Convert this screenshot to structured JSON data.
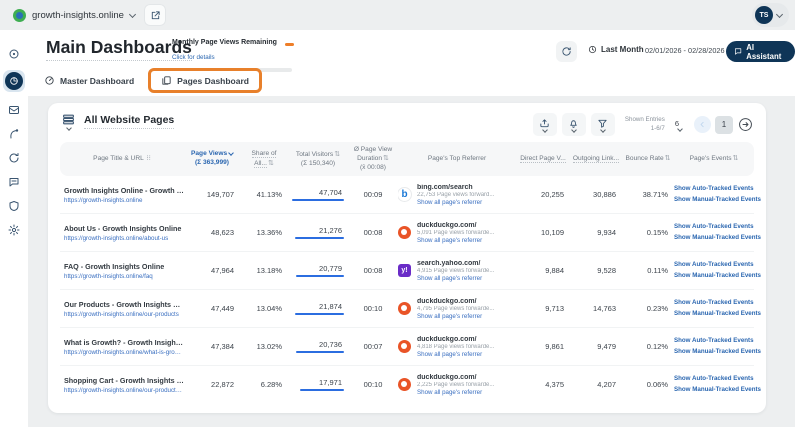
{
  "colors": {
    "accent_blue": "#2a66b0",
    "navy": "#0f3557",
    "highlight_orange": "#e8802b",
    "link_blue": "#3a6fc0",
    "bar_blue": "#2b6de0"
  },
  "topbar": {
    "site": "growth-insights.online",
    "avatar_initials": "TS"
  },
  "page_header": {
    "title": "Main Dashboards",
    "quota_label": "Monthly Page Views Remaining",
    "quota_link": "Click for details",
    "period_label": "Last Month",
    "date_range": "02/01/2026 - 02/28/2026",
    "ai_assistant": "AI Assistant"
  },
  "tabs": [
    {
      "label": "Master Dashboard"
    },
    {
      "label": "Pages Dashboard"
    }
  ],
  "widget": {
    "title": "All Website Pages",
    "shown_entries_label": "Shown Entries",
    "shown_entries_value": "1-6/7",
    "page_size": "6",
    "page_number": "1"
  },
  "table": {
    "headers": {
      "title": "Page Title & URL",
      "views": "Page Views",
      "views_sum": "(Σ 363,999)",
      "share": "Share of All...",
      "visitors": "Total Visitors",
      "visitors_sum": "(Σ 150,340)",
      "duration": "Ø Page View Duration",
      "duration_avg": "(x̄ 00:08)",
      "referrer": "Page's Top Referrer",
      "direct": "Direct Page V...",
      "outgoing": "Outgoing Link...",
      "bounce": "Bounce Rate",
      "events": "Page's Events"
    },
    "referrer_link_label": "Show all page's referrer",
    "events_links": [
      "Show Auto-Tracked Events",
      "Show Manual-Tracked Events"
    ],
    "rows": [
      {
        "title": "Growth Insights Online - Growth Insights Onl...",
        "url": "https://growth-insights.online",
        "views": "149,707",
        "share": "41.13%",
        "visitors": "47,704",
        "bar_pct": 100,
        "duration": "00:09",
        "ref_icon": "bing",
        "ref_domain": "bing.com/search",
        "ref_note": "22,753 Page views forward...",
        "direct": "20,255",
        "outgoing": "30,886",
        "bounce": "38.71%"
      },
      {
        "title": "About Us - Growth Insights Online",
        "url": "https://growth-insights.online/about-us",
        "views": "48,623",
        "share": "13.36%",
        "visitors": "21,276",
        "bar_pct": 95,
        "duration": "00:08",
        "ref_icon": "duckduckgo",
        "ref_domain": "duckduckgo.com/",
        "ref_note": "5,091 Page views forwarde...",
        "direct": "10,109",
        "outgoing": "9,934",
        "bounce": "0.15%"
      },
      {
        "title": "FAQ - Growth Insights Online",
        "url": "https://growth-insights.online/faq",
        "views": "47,964",
        "share": "13.18%",
        "visitors": "20,779",
        "bar_pct": 93,
        "duration": "00:08",
        "ref_icon": "yahoo",
        "ref_domain": "search.yahoo.com/",
        "ref_note": "4,915 Page views forwarde...",
        "direct": "9,884",
        "outgoing": "9,528",
        "bounce": "0.11%"
      },
      {
        "title": "Our Products - Growth Insights Online",
        "url": "https://growth-insights.online/our-products",
        "views": "47,449",
        "share": "13.04%",
        "visitors": "21,874",
        "bar_pct": 95,
        "duration": "00:10",
        "ref_icon": "duckduckgo",
        "ref_domain": "duckduckgo.com/",
        "ref_note": "4,795 Page views forwarde...",
        "direct": "9,713",
        "outgoing": "14,763",
        "bounce": "0.23%"
      },
      {
        "title": "What is Growth? - Growth Insights Online",
        "url": "https://growth-insights.online/what-is-growth",
        "views": "47,384",
        "share": "13.02%",
        "visitors": "20,736",
        "bar_pct": 93,
        "duration": "00:07",
        "ref_icon": "duckduckgo",
        "ref_domain": "duckduckgo.com/",
        "ref_note": "4,818 Page views forwarde...",
        "direct": "9,861",
        "outgoing": "9,479",
        "bounce": "0.12%"
      },
      {
        "title": "Shopping Cart - Growth Insights Online",
        "url": "https://growth-insights.online/our-products/shop...",
        "views": "22,872",
        "share": "6.28%",
        "visitors": "17,971",
        "bar_pct": 85,
        "duration": "00:10",
        "ref_icon": "duckduckgo",
        "ref_domain": "duckduckgo.com/",
        "ref_note": "2,225 Page views forwarde...",
        "direct": "4,375",
        "outgoing": "4,207",
        "bounce": "0.06%"
      }
    ]
  },
  "sidebar": {
    "icons": [
      "menu",
      "dashboards",
      "messages",
      "analytics",
      "sync",
      "chat",
      "privacy",
      "settings"
    ]
  }
}
